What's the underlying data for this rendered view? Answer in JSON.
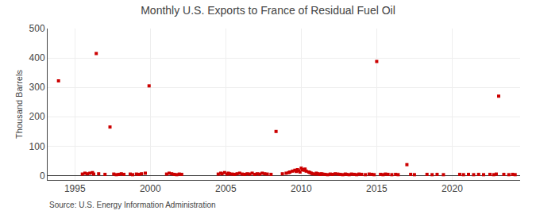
{
  "chart_data": {
    "type": "scatter",
    "title": "Monthly U.S. Exports to France of Residual Fuel Oil",
    "ylabel": "Thousand Barrels",
    "annotations": [
      "Source: U.S. Energy Information Administration"
    ],
    "x": [
      1993.92,
      1996.42,
      1997.33,
      1999.92,
      1995.5,
      1995.67,
      1995.83,
      1996.0,
      1996.17,
      1996.25,
      1996.58,
      1997.0,
      1997.58,
      1997.75,
      1997.92,
      1998.08,
      1998.25,
      1998.67,
      1998.83,
      1999.08,
      1999.25,
      1999.42,
      1999.67,
      2001.08,
      2001.25,
      2001.42,
      2001.58,
      2001.75,
      2001.92,
      2002.08,
      2004.5,
      2004.67,
      2004.75,
      2004.92,
      2005.08,
      2005.17,
      2005.25,
      2005.42,
      2005.58,
      2005.75,
      2005.92,
      2006.08,
      2006.25,
      2006.42,
      2006.58,
      2006.75,
      2006.92,
      2007.08,
      2007.25,
      2007.42,
      2007.58,
      2007.75,
      2008.0,
      2008.33,
      2008.75,
      2009.0,
      2009.17,
      2009.25,
      2009.42,
      2009.58,
      2009.67,
      2009.75,
      2009.83,
      2009.92,
      2010.0,
      2010.08,
      2010.17,
      2010.25,
      2010.33,
      2010.5,
      2010.58,
      2010.67,
      2010.75,
      2010.92,
      2011.0,
      2011.08,
      2011.17,
      2011.25,
      2011.33,
      2011.42,
      2011.58,
      2011.75,
      2011.92,
      2012.08,
      2012.25,
      2012.42,
      2012.58,
      2012.75,
      2012.92,
      2013.0,
      2013.17,
      2013.33,
      2013.5,
      2013.67,
      2013.83,
      2014.0,
      2014.25,
      2014.5,
      2014.67,
      2014.83,
      2015.0,
      2015.25,
      2015.42,
      2015.58,
      2015.75,
      2016.0,
      2016.25,
      2016.42,
      2017.0,
      2017.25,
      2017.5,
      2018.33,
      2018.67,
      2019.0,
      2019.42,
      2020.5,
      2020.75,
      2021.08,
      2021.42,
      2021.75,
      2022.08,
      2022.5,
      2022.75,
      2022.92,
      2023.08,
      2023.42,
      2023.75,
      2024.0,
      2024.17
    ],
    "values": [
      322,
      415,
      165,
      305,
      5,
      8,
      6,
      8,
      10,
      5,
      6,
      4,
      5,
      3,
      4,
      6,
      4,
      5,
      3,
      5,
      4,
      6,
      8,
      5,
      8,
      6,
      4,
      3,
      5,
      4,
      5,
      8,
      6,
      10,
      5,
      8,
      6,
      5,
      4,
      6,
      8,
      5,
      4,
      6,
      5,
      8,
      4,
      6,
      5,
      8,
      6,
      5,
      4,
      150,
      6,
      8,
      10,
      12,
      15,
      18,
      14,
      20,
      16,
      12,
      25,
      20,
      18,
      22,
      15,
      12,
      10,
      8,
      6,
      5,
      8,
      6,
      5,
      4,
      6,
      5,
      4,
      3,
      5,
      4,
      6,
      5,
      4,
      3,
      5,
      4,
      3,
      5,
      4,
      3,
      5,
      4,
      3,
      5,
      4,
      3,
      388,
      4,
      3,
      5,
      4,
      3,
      4,
      3,
      37,
      4,
      3,
      4,
      3,
      4,
      3,
      4,
      3,
      4,
      3,
      4,
      3,
      4,
      3,
      5,
      270,
      4,
      3,
      4,
      3
    ],
    "color": "#cc0000",
    "marker": "square",
    "xlim": [
      1993.2,
      2024.5
    ],
    "ylim": [
      -15,
      500
    ],
    "xticks": [
      1995,
      2000,
      2005,
      2010,
      2015,
      2020
    ],
    "yticks": [
      0,
      100,
      200,
      300,
      400,
      500
    ],
    "grid": true
  }
}
